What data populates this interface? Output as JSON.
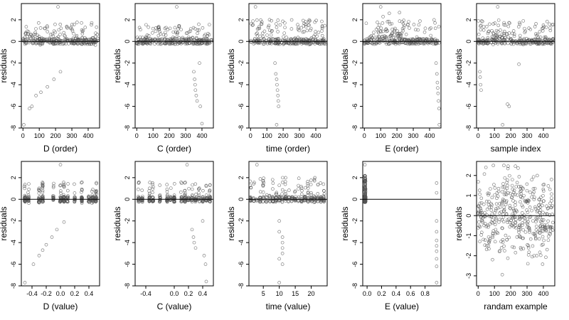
{
  "chart_data": [
    {
      "type": "scatter",
      "xlabel": "D (order)",
      "ylabel": "residuals",
      "xlim": [
        -10,
        470
      ],
      "ylim": [
        -8,
        3.5
      ],
      "xticks": [
        0,
        100,
        200,
        300,
        400
      ],
      "yticks": [
        -8,
        -6,
        -4,
        -2,
        0,
        2
      ],
      "hline": 0,
      "outliers": [
        [
          5,
          -7.7
        ],
        [
          40,
          -6.2
        ],
        [
          55,
          -6
        ],
        [
          80,
          -5
        ],
        [
          110,
          -4.7
        ],
        [
          150,
          -4.2
        ],
        [
          190,
          -3.5
        ],
        [
          230,
          -2.8
        ],
        [
          215,
          3.2
        ]
      ],
      "body": {
        "n": 300,
        "x": [
          0,
          460
        ],
        "y": [
          -0.6,
          1.8
        ],
        "skew": "left-high"
      }
    },
    {
      "type": "scatter",
      "xlabel": "C (order)",
      "ylabel": "residuals",
      "xlim": [
        -10,
        470
      ],
      "ylim": [
        -8,
        3.5
      ],
      "xticks": [
        0,
        100,
        200,
        300,
        400
      ],
      "yticks": [
        -8,
        -6,
        -4,
        -2,
        0,
        2
      ],
      "hline": 0,
      "outliers": [
        [
          350,
          -2.8
        ],
        [
          355,
          -3.5
        ],
        [
          358,
          -4
        ],
        [
          360,
          -4.5
        ],
        [
          365,
          -5
        ],
        [
          370,
          -5.5
        ],
        [
          385,
          -2
        ],
        [
          390,
          -6
        ],
        [
          400,
          -7.6
        ],
        [
          245,
          3.2
        ]
      ],
      "body": {
        "n": 300,
        "x": [
          0,
          460
        ],
        "y": [
          -0.5,
          1.6
        ],
        "skew": "none"
      }
    },
    {
      "type": "scatter",
      "xlabel": "time (order)",
      "ylabel": "residuals",
      "xlim": [
        -10,
        470
      ],
      "ylim": [
        -8,
        3.5
      ],
      "xticks": [
        0,
        100,
        200,
        300,
        400
      ],
      "yticks": [
        -8,
        -6,
        -4,
        -2,
        0,
        2
      ],
      "hline": 0,
      "outliers": [
        [
          150,
          -2
        ],
        [
          155,
          -3
        ],
        [
          160,
          -3.5
        ],
        [
          162,
          -4
        ],
        [
          165,
          -4.5
        ],
        [
          168,
          -5
        ],
        [
          170,
          -5.5
        ],
        [
          172,
          -6
        ],
        [
          160,
          -7.7
        ],
        [
          30,
          3.2
        ]
      ],
      "body": {
        "n": 300,
        "x": [
          0,
          460
        ],
        "y": [
          -0.5,
          2
        ],
        "skew": "none"
      }
    },
    {
      "type": "scatter",
      "xlabel": "E (order)",
      "ylabel": "residuals",
      "xlim": [
        -10,
        470
      ],
      "ylim": [
        -8,
        3.5
      ],
      "xticks": [
        0,
        100,
        200,
        300,
        400
      ],
      "yticks": [
        -8,
        -6,
        -4,
        -2,
        0,
        2
      ],
      "hline": 0,
      "outliers": [
        [
          440,
          -2
        ],
        [
          445,
          -3
        ],
        [
          448,
          -3.8
        ],
        [
          450,
          -4.3
        ],
        [
          452,
          -4.8
        ],
        [
          455,
          -5.5
        ],
        [
          458,
          -6.2
        ],
        [
          460,
          -7.7
        ],
        [
          100,
          3.2
        ]
      ],
      "body": {
        "n": 300,
        "x": [
          0,
          460
        ],
        "y": [
          -0.4,
          2
        ],
        "skew": "middle-high"
      }
    },
    {
      "type": "scatter",
      "xlabel": "sample index",
      "ylabel": "residuals",
      "xlim": [
        -10,
        470
      ],
      "ylim": [
        -8,
        3.5
      ],
      "xticks": [
        0,
        100,
        200,
        300,
        400
      ],
      "yticks": [
        -8,
        -6,
        -4,
        -2,
        0,
        2
      ],
      "hline": 0,
      "outliers": [
        [
          10,
          -2.8
        ],
        [
          12,
          -3.3
        ],
        [
          15,
          -4
        ],
        [
          18,
          -4.5
        ],
        [
          150,
          -7.7
        ],
        [
          180,
          -5.8
        ],
        [
          190,
          -6
        ],
        [
          250,
          -2.1
        ],
        [
          120,
          3.2
        ]
      ],
      "body": {
        "n": 300,
        "x": [
          0,
          460
        ],
        "y": [
          -0.5,
          2
        ],
        "skew": "middle-high"
      }
    },
    {
      "type": "scatter",
      "xlabel": "D (value)",
      "ylabel": "residuals",
      "xlim": [
        -0.55,
        0.55
      ],
      "ylim": [
        -8,
        3.5
      ],
      "xticks": [
        -0.4,
        -0.2,
        0.0,
        0.2,
        0.4
      ],
      "xtick_labels": [
        "-0.4",
        "-0.2",
        "0.0",
        "0.2",
        "0.4"
      ],
      "yticks": [
        -8,
        -6,
        -4,
        -2,
        0,
        2
      ],
      "hline": 0,
      "outliers": [
        [
          -0.5,
          -7.7
        ],
        [
          -0.38,
          -6
        ],
        [
          -0.3,
          -5.2
        ],
        [
          -0.25,
          -4.7
        ],
        [
          -0.2,
          -4.2
        ],
        [
          -0.12,
          -3.5
        ],
        [
          -0.05,
          -2.8
        ],
        [
          0.05,
          -2.1
        ],
        [
          0.0,
          3.2
        ]
      ],
      "body": {
        "n": 300,
        "x": [
          -0.5,
          0.5
        ],
        "y": [
          -0.6,
          1.6
        ],
        "columns": [
          -0.5,
          -0.45,
          -0.3,
          -0.25,
          -0.1,
          0.0,
          0.05,
          0.1,
          0.2,
          0.3,
          0.4,
          0.45,
          0.5
        ]
      }
    },
    {
      "type": "scatter",
      "xlabel": "C (value)",
      "ylabel": "residuals",
      "xlim": [
        -0.55,
        0.55
      ],
      "ylim": [
        -8,
        3.5
      ],
      "xticks": [
        -0.4,
        0.0,
        0.2,
        0.4
      ],
      "xtick_labels": [
        "-0.4",
        "0.0",
        "0.2",
        "0.4"
      ],
      "yticks": [
        -8,
        -6,
        -4,
        -2,
        0,
        2
      ],
      "hline": 0,
      "outliers": [
        [
          0.25,
          -2.8
        ],
        [
          0.27,
          -3.5
        ],
        [
          0.28,
          -4
        ],
        [
          0.3,
          -4.5
        ],
        [
          0.4,
          -2
        ],
        [
          0.42,
          -5.2
        ],
        [
          0.44,
          -6
        ],
        [
          0.45,
          -7.6
        ],
        [
          0.18,
          3.2
        ]
      ],
      "body": {
        "n": 300,
        "x": [
          -0.5,
          0.5
        ],
        "y": [
          -0.5,
          1.6
        ],
        "columns": [
          -0.5,
          -0.45,
          -0.35,
          -0.3,
          -0.2,
          -0.1,
          -0.05,
          0.0,
          0.1,
          0.15,
          0.2,
          0.25,
          0.3,
          0.35,
          0.4,
          0.45,
          0.5
        ]
      }
    },
    {
      "type": "scatter",
      "xlabel": "time (value)",
      "ylabel": "residuals",
      "xlim": [
        0.5,
        25
      ],
      "ylim": [
        -8,
        3.5
      ],
      "xticks": [
        5,
        10,
        15,
        20
      ],
      "yticks": [
        -8,
        -6,
        -4,
        -2,
        0,
        2
      ],
      "hline": 0,
      "outliers": [
        [
          10,
          -2
        ],
        [
          10,
          -3
        ],
        [
          11,
          -3.5
        ],
        [
          11,
          -4
        ],
        [
          11,
          -4.5
        ],
        [
          11,
          -5
        ],
        [
          10,
          -5.5
        ],
        [
          11,
          -6
        ],
        [
          10,
          -7.7
        ],
        [
          3,
          3.2
        ]
      ],
      "body": {
        "n": 300,
        "x": [
          1,
          24
        ],
        "y": [
          -0.5,
          2
        ],
        "columns": [
          1,
          2,
          3,
          4,
          5,
          6,
          7,
          8,
          9,
          10,
          11,
          12,
          13,
          14,
          15,
          16,
          17,
          18,
          19,
          20,
          21,
          22,
          23,
          24
        ]
      }
    },
    {
      "type": "scatter",
      "xlabel": "E (value)",
      "ylabel": "residuals",
      "xlim": [
        -0.06,
        1.02
      ],
      "ylim": [
        -8,
        3.5
      ],
      "xticks": [
        0.0,
        0.2,
        0.4,
        0.6,
        0.8
      ],
      "xtick_labels": [
        "0.0",
        "0.2",
        "0.4",
        "0.6",
        "0.8"
      ],
      "yticks": [
        -8,
        -6,
        -4,
        -2,
        0,
        2
      ],
      "hline": 0,
      "outliers": [
        [
          0.96,
          -2
        ],
        [
          0.96,
          -3
        ],
        [
          0.96,
          -3.8
        ],
        [
          0.96,
          -4.3
        ],
        [
          0.96,
          -4.8
        ],
        [
          0.96,
          -5.5
        ],
        [
          0.96,
          -6.2
        ],
        [
          0.96,
          -7.7
        ],
        [
          0.96,
          0.6
        ],
        [
          0.96,
          1.5
        ],
        [
          -0.03,
          3.2
        ]
      ],
      "body": {
        "n": 260,
        "x": [
          -0.035,
          -0.02
        ],
        "y": [
          -0.5,
          2.2
        ]
      }
    },
    {
      "type": "scatter",
      "xlabel": "randam example",
      "ylabel": "residuals",
      "xlim": [
        -10,
        470
      ],
      "ylim": [
        -3.5,
        2.7
      ],
      "xticks": [
        0,
        100,
        200,
        300,
        400
      ],
      "yticks": [
        -3,
        -2,
        -1,
        0,
        1,
        2
      ],
      "hline": 0,
      "outliers": [],
      "body": {
        "n": 420,
        "x": [
          0,
          460
        ],
        "y": [
          -3.2,
          2.5
        ],
        "normal": true
      }
    }
  ]
}
